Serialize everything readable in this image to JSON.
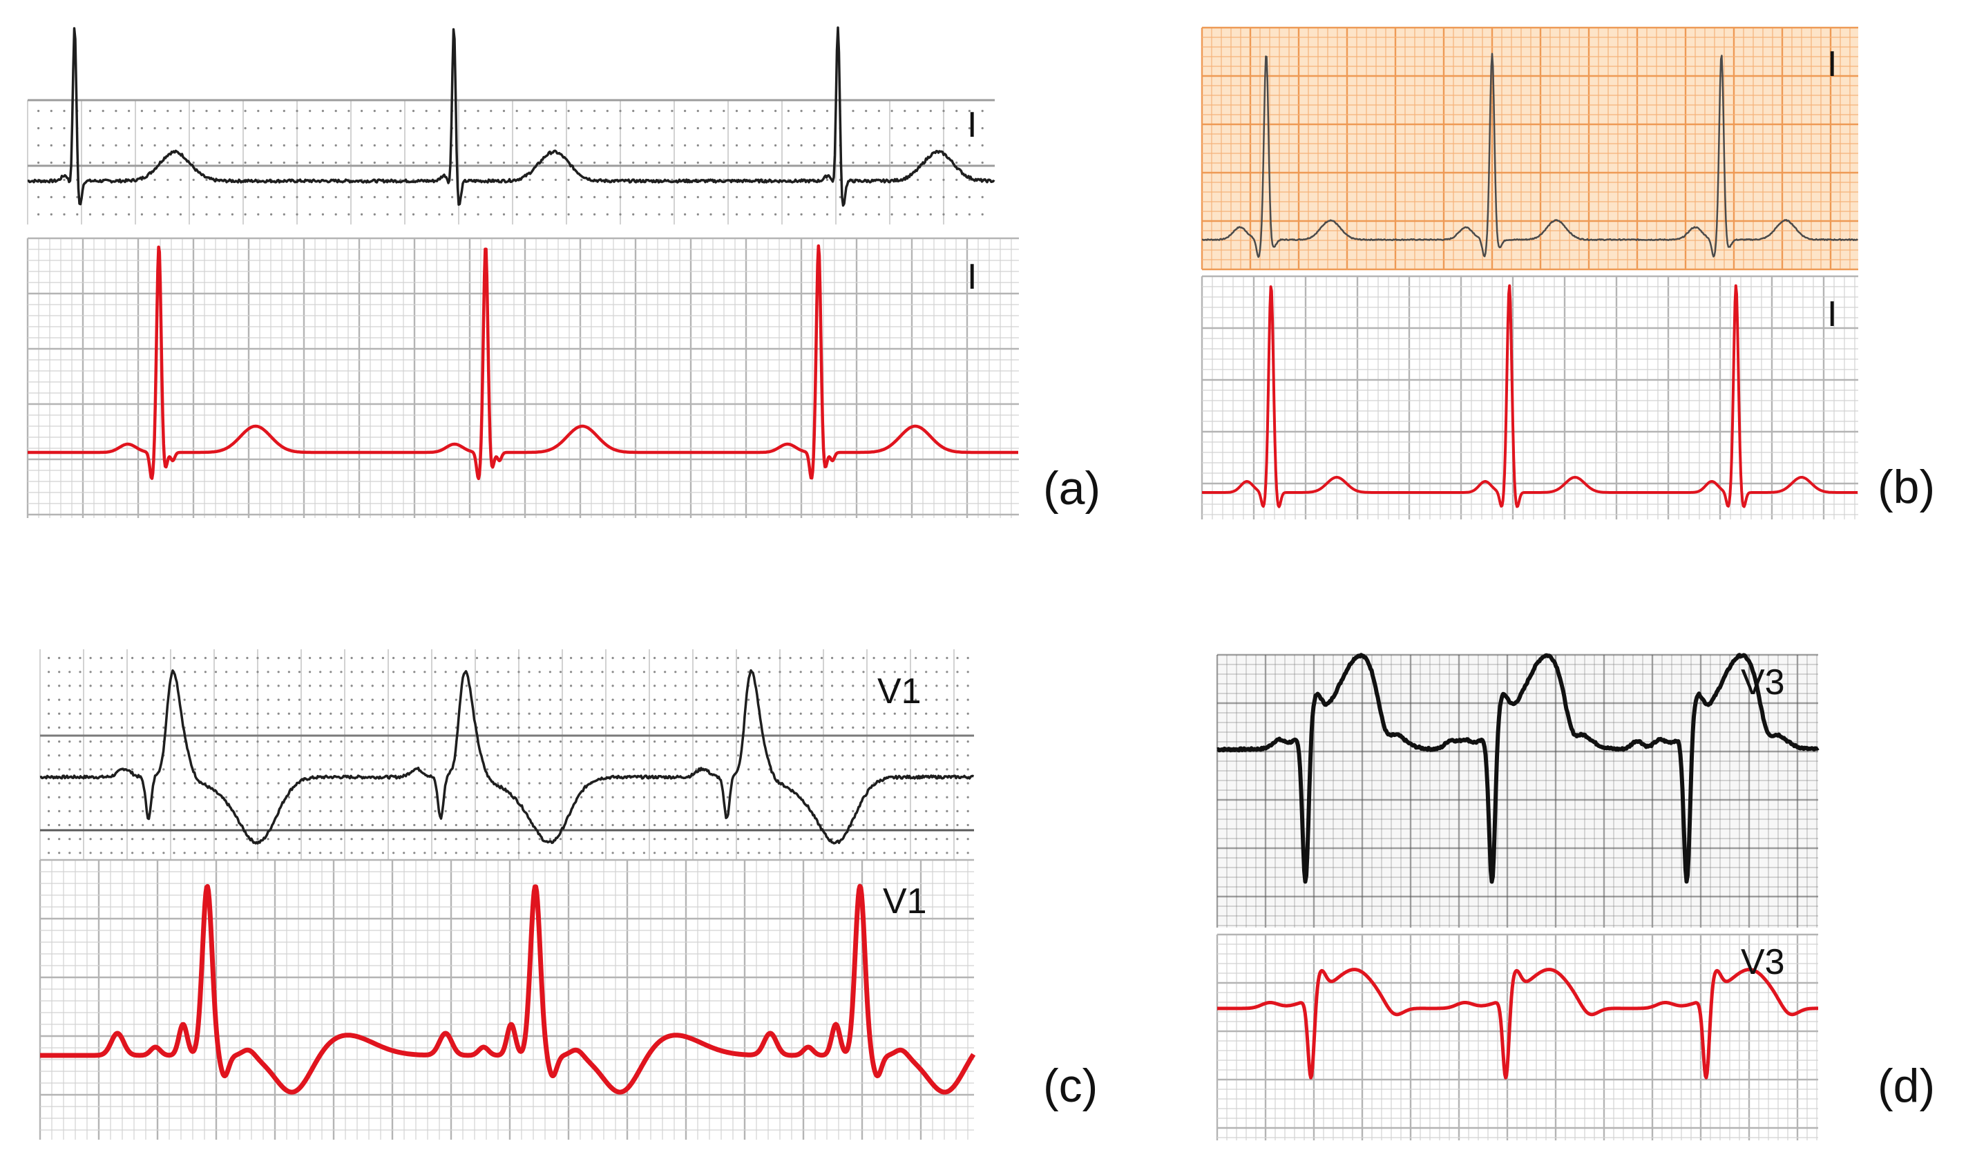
{
  "colors": {
    "black_trace": "#1e1e1e",
    "red_trace": "#e0141e",
    "grid_light": "#d2d2d2",
    "grid_heavy": "#b4b4b4",
    "orange_bg": "#fde4c8",
    "orange_grid": "#f5b27a",
    "orange_grid_heavy": "#ee9a55",
    "scan_grid": "#8c8c8c"
  },
  "panels": [
    {
      "id": "a",
      "panel_label": "(a)",
      "original_lead": "I",
      "reconstructed_lead": "I",
      "original_style": "dotted-grid"
    },
    {
      "id": "b",
      "panel_label": "(b)",
      "original_lead": "I",
      "reconstructed_lead": "I",
      "original_style": "orange-paper"
    },
    {
      "id": "c",
      "panel_label": "(c)",
      "original_lead": "V1",
      "reconstructed_lead": "V1",
      "original_style": "dotted-grid"
    },
    {
      "id": "d",
      "panel_label": "(d)",
      "original_lead": "V3",
      "reconstructed_lead": "V3",
      "original_style": "scanned-paper"
    }
  ]
}
